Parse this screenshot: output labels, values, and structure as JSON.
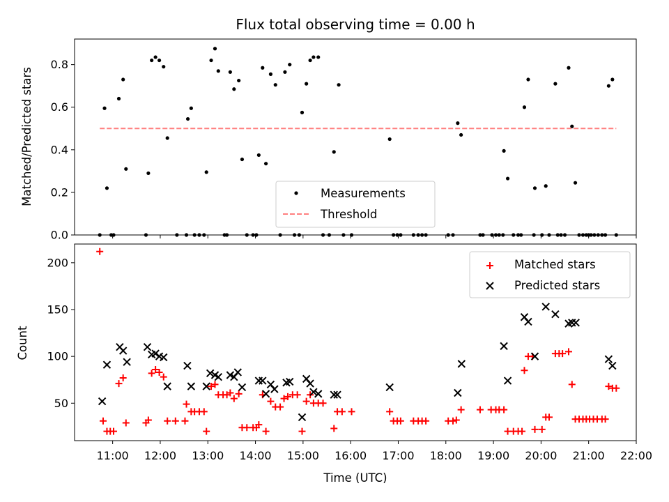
{
  "chart_data": [
    {
      "type": "scatter",
      "title": "Flux total observing time = 0.00 h",
      "xlabel": "",
      "ylabel": "Matched/Predicted stars",
      "xlim": [
        10.2,
        22.0
      ],
      "ylim": [
        0,
        0.92
      ],
      "yticks": [
        0.0,
        0.2,
        0.4,
        0.6,
        0.8
      ],
      "ytick_labels": [
        "0.0",
        "0.2",
        "0.4",
        "0.6",
        "0.8"
      ],
      "legend_position": "lower center",
      "series": [
        {
          "name": "Measurements",
          "color": "#000000",
          "marker": "dot",
          "points": [
            [
              10.73,
              0
            ],
            [
              10.83,
              0.595
            ],
            [
              10.88,
              0.22
            ],
            [
              10.97,
              0
            ],
            [
              11.02,
              0
            ],
            [
              11.13,
              0.64
            ],
            [
              11.22,
              0.73
            ],
            [
              11.28,
              0.31
            ],
            [
              11.7,
              0
            ],
            [
              11.75,
              0.29
            ],
            [
              11.82,
              0.82
            ],
            [
              11.9,
              0.835
            ],
            [
              11.98,
              0.82
            ],
            [
              12.07,
              0.79
            ],
            [
              12.15,
              0.455
            ],
            [
              12.35,
              0
            ],
            [
              12.55,
              0
            ],
            [
              12.58,
              0.545
            ],
            [
              12.65,
              0.595
            ],
            [
              12.72,
              0
            ],
            [
              12.82,
              0
            ],
            [
              12.92,
              0
            ],
            [
              12.97,
              0.295
            ],
            [
              13.07,
              0.82
            ],
            [
              13.15,
              0.875
            ],
            [
              13.22,
              0.77
            ],
            [
              13.35,
              0
            ],
            [
              13.4,
              0
            ],
            [
              13.47,
              0.765
            ],
            [
              13.55,
              0.685
            ],
            [
              13.65,
              0.725
            ],
            [
              13.72,
              0.355
            ],
            [
              13.82,
              0
            ],
            [
              13.95,
              0
            ],
            [
              14.02,
              0
            ],
            [
              14.07,
              0.375
            ],
            [
              14.15,
              0.785
            ],
            [
              14.22,
              0.335
            ],
            [
              14.32,
              0.755
            ],
            [
              14.42,
              0.705
            ],
            [
              14.52,
              0
            ],
            [
              14.62,
              0.765
            ],
            [
              14.72,
              0.8
            ],
            [
              14.82,
              0
            ],
            [
              14.92,
              0
            ],
            [
              14.98,
              0.575
            ],
            [
              15.07,
              0.71
            ],
            [
              15.15,
              0.82
            ],
            [
              15.22,
              0.835
            ],
            [
              15.32,
              0.835
            ],
            [
              15.42,
              0
            ],
            [
              15.55,
              0
            ],
            [
              15.65,
              0.39
            ],
            [
              15.75,
              0.705
            ],
            [
              15.85,
              0
            ],
            [
              16.02,
              0
            ],
            [
              16.82,
              0.45
            ],
            [
              16.9,
              0
            ],
            [
              16.98,
              0
            ],
            [
              17.05,
              0
            ],
            [
              17.32,
              0
            ],
            [
              17.42,
              0
            ],
            [
              17.5,
              0
            ],
            [
              17.58,
              0
            ],
            [
              18.05,
              0
            ],
            [
              18.15,
              0
            ],
            [
              18.25,
              0.525
            ],
            [
              18.32,
              0.47
            ],
            [
              18.72,
              0
            ],
            [
              18.78,
              0
            ],
            [
              18.97,
              0
            ],
            [
              19.05,
              0
            ],
            [
              19.12,
              0
            ],
            [
              19.2,
              0
            ],
            [
              19.22,
              0.395
            ],
            [
              19.3,
              0.265
            ],
            [
              19.42,
              0
            ],
            [
              19.52,
              0
            ],
            [
              19.58,
              0
            ],
            [
              19.65,
              0.6
            ],
            [
              19.73,
              0.73
            ],
            [
              19.85,
              0
            ],
            [
              19.87,
              0.22
            ],
            [
              20.02,
              0
            ],
            [
              20.1,
              0.23
            ],
            [
              20.17,
              0
            ],
            [
              20.3,
              0.71
            ],
            [
              20.35,
              0
            ],
            [
              20.42,
              0
            ],
            [
              20.5,
              0
            ],
            [
              20.58,
              0.785
            ],
            [
              20.65,
              0.51
            ],
            [
              20.72,
              0.245
            ],
            [
              20.8,
              0
            ],
            [
              20.88,
              0
            ],
            [
              20.95,
              0
            ],
            [
              21.0,
              0
            ],
            [
              21.05,
              0
            ],
            [
              21.12,
              0
            ],
            [
              21.2,
              0
            ],
            [
              21.28,
              0
            ],
            [
              21.35,
              0
            ],
            [
              21.42,
              0.7
            ],
            [
              21.5,
              0.73
            ],
            [
              21.58,
              0
            ]
          ]
        },
        {
          "name": "Threshold",
          "color": "#ff7f7f",
          "style": "dashed",
          "x": [
            10.73,
            21.58
          ],
          "y": [
            0.5,
            0.5
          ]
        }
      ]
    },
    {
      "type": "scatter",
      "title": "",
      "xlabel": "Time (UTC)",
      "ylabel": "Count",
      "xlim": [
        10.2,
        22.0
      ],
      "ylim": [
        10,
        220
      ],
      "yticks": [
        50,
        100,
        150,
        200
      ],
      "ytick_labels": [
        "50",
        "100",
        "150",
        "200"
      ],
      "xticks": [
        11,
        12,
        13,
        14,
        15,
        16,
        17,
        18,
        19,
        20,
        21,
        22
      ],
      "xtick_labels": [
        "11:00",
        "12:00",
        "13:00",
        "14:00",
        "15:00",
        "16:00",
        "17:00",
        "18:00",
        "19:00",
        "20:00",
        "21:00",
        "22:00"
      ],
      "legend_position": "upper right",
      "series": [
        {
          "name": "Matched stars",
          "color": "#ff0000",
          "marker": "plus",
          "points": [
            [
              10.73,
              212
            ],
            [
              10.8,
              31
            ],
            [
              10.88,
              20
            ],
            [
              10.95,
              20
            ],
            [
              11.02,
              20
            ],
            [
              11.13,
              71
            ],
            [
              11.22,
              77
            ],
            [
              11.28,
              29
            ],
            [
              11.7,
              29
            ],
            [
              11.75,
              32
            ],
            [
              11.82,
              82
            ],
            [
              11.9,
              86
            ],
            [
              11.98,
              83
            ],
            [
              12.07,
              78
            ],
            [
              12.15,
              31
            ],
            [
              12.32,
              31
            ],
            [
              12.52,
              31
            ],
            [
              12.55,
              49
            ],
            [
              12.65,
              41
            ],
            [
              12.72,
              41
            ],
            [
              12.82,
              41
            ],
            [
              12.92,
              41
            ],
            [
              12.97,
              20
            ],
            [
              13.07,
              68
            ],
            [
              13.15,
              70
            ],
            [
              13.22,
              59
            ],
            [
              13.32,
              59
            ],
            [
              13.4,
              59
            ],
            [
              13.47,
              61
            ],
            [
              13.55,
              55
            ],
            [
              13.65,
              60
            ],
            [
              13.72,
              24
            ],
            [
              13.82,
              24
            ],
            [
              13.95,
              24
            ],
            [
              14.02,
              24
            ],
            [
              14.07,
              27
            ],
            [
              14.15,
              59
            ],
            [
              14.22,
              20
            ],
            [
              14.32,
              52
            ],
            [
              14.42,
              46
            ],
            [
              14.52,
              46
            ],
            [
              14.6,
              55
            ],
            [
              14.68,
              57
            ],
            [
              14.78,
              59
            ],
            [
              14.88,
              59
            ],
            [
              14.98,
              20
            ],
            [
              15.07,
              52
            ],
            [
              15.15,
              59
            ],
            [
              15.22,
              50
            ],
            [
              15.32,
              50
            ],
            [
              15.42,
              50
            ],
            [
              15.65,
              23
            ],
            [
              15.72,
              41
            ],
            [
              15.82,
              41
            ],
            [
              16.02,
              41
            ],
            [
              16.82,
              41
            ],
            [
              16.9,
              31
            ],
            [
              16.98,
              31
            ],
            [
              17.05,
              31
            ],
            [
              17.32,
              31
            ],
            [
              17.42,
              31
            ],
            [
              17.5,
              31
            ],
            [
              17.58,
              31
            ],
            [
              18.05,
              31
            ],
            [
              18.15,
              31
            ],
            [
              18.22,
              32
            ],
            [
              18.32,
              43
            ],
            [
              18.72,
              43
            ],
            [
              18.95,
              43
            ],
            [
              19.05,
              43
            ],
            [
              19.12,
              43
            ],
            [
              19.22,
              43
            ],
            [
              19.3,
              20
            ],
            [
              19.42,
              20
            ],
            [
              19.52,
              20
            ],
            [
              19.6,
              20
            ],
            [
              19.65,
              85
            ],
            [
              19.73,
              100
            ],
            [
              19.82,
              100
            ],
            [
              19.87,
              22
            ],
            [
              20.02,
              22
            ],
            [
              20.1,
              35
            ],
            [
              20.17,
              35
            ],
            [
              20.3,
              103
            ],
            [
              20.38,
              103
            ],
            [
              20.45,
              103
            ],
            [
              20.58,
              105
            ],
            [
              20.65,
              70
            ],
            [
              20.72,
              33
            ],
            [
              20.8,
              33
            ],
            [
              20.88,
              33
            ],
            [
              20.95,
              33
            ],
            [
              21.02,
              33
            ],
            [
              21.1,
              33
            ],
            [
              21.18,
              33
            ],
            [
              21.28,
              33
            ],
            [
              21.35,
              33
            ],
            [
              21.42,
              68
            ],
            [
              21.5,
              66
            ],
            [
              21.58,
              66
            ]
          ]
        },
        {
          "name": "Predicted stars",
          "color": "#000000",
          "marker": "x",
          "points": [
            [
              10.78,
              52
            ],
            [
              10.88,
              91
            ],
            [
              11.15,
              110
            ],
            [
              11.22,
              106
            ],
            [
              11.3,
              94
            ],
            [
              11.73,
              110
            ],
            [
              11.82,
              102
            ],
            [
              11.9,
              103
            ],
            [
              11.98,
              100
            ],
            [
              12.07,
              99
            ],
            [
              12.15,
              68
            ],
            [
              12.57,
              90
            ],
            [
              12.65,
              68
            ],
            [
              12.97,
              68
            ],
            [
              13.05,
              82
            ],
            [
              13.15,
              80
            ],
            [
              13.22,
              78
            ],
            [
              13.47,
              80
            ],
            [
              13.55,
              78
            ],
            [
              13.63,
              83
            ],
            [
              13.72,
              67
            ],
            [
              14.07,
              74
            ],
            [
              14.15,
              74
            ],
            [
              14.22,
              60
            ],
            [
              14.32,
              70
            ],
            [
              14.4,
              65
            ],
            [
              14.65,
              72
            ],
            [
              14.72,
              73
            ],
            [
              14.98,
              35
            ],
            [
              15.07,
              76
            ],
            [
              15.15,
              71
            ],
            [
              15.22,
              62
            ],
            [
              15.32,
              60
            ],
            [
              15.65,
              59
            ],
            [
              15.72,
              59
            ],
            [
              16.82,
              67
            ],
            [
              18.25,
              61
            ],
            [
              18.33,
              92
            ],
            [
              19.22,
              111
            ],
            [
              19.3,
              74
            ],
            [
              19.65,
              142
            ],
            [
              19.73,
              137
            ],
            [
              19.87,
              100
            ],
            [
              20.1,
              153
            ],
            [
              20.3,
              145
            ],
            [
              20.58,
              135
            ],
            [
              20.65,
              136
            ],
            [
              20.73,
              136
            ],
            [
              21.42,
              97
            ],
            [
              21.5,
              90
            ]
          ]
        }
      ]
    }
  ]
}
